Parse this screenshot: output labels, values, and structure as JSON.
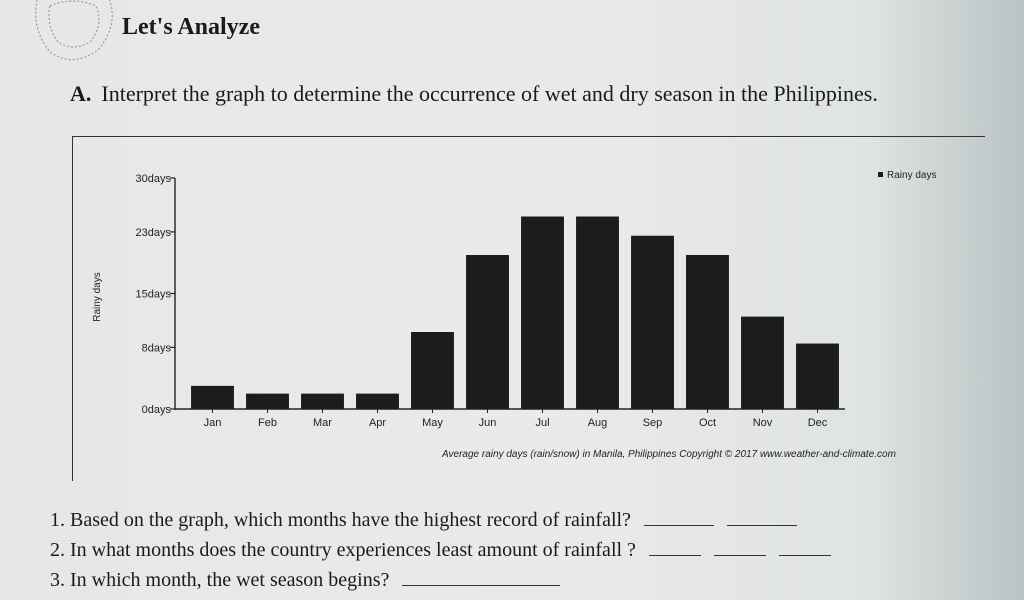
{
  "heading": "Let's Analyze",
  "section_a": {
    "label": "A.",
    "instruction": "Interpret the graph to determine the occurrence of wet and dry season in the Philippines."
  },
  "questions": [
    {
      "text": "1. Based on the graph, which months have the highest record of rainfall?"
    },
    {
      "text": "2. In what months does the country experiences least amount of rainfall ?"
    },
    {
      "text": "3. In which month, the wet season begins?"
    }
  ],
  "chart_data": {
    "type": "bar",
    "categories": [
      "Jan",
      "Feb",
      "Mar",
      "Apr",
      "May",
      "Jun",
      "Jul",
      "Aug",
      "Sep",
      "Oct",
      "Nov",
      "Dec"
    ],
    "series": [
      {
        "name": "Rainy days",
        "values": [
          3,
          2,
          2,
          2,
          10,
          20,
          25,
          25,
          22.5,
          20,
          12,
          8.5
        ],
        "color": "#1c1c1c"
      }
    ],
    "ylabel": "Rainy days",
    "ylim": [
      0,
      30
    ],
    "yticks": [
      0,
      8,
      15,
      23,
      30
    ],
    "ytick_labels": [
      "0days",
      "8days",
      "15days",
      "23days",
      "30days"
    ],
    "caption": "Average rainy days (rain/snow) in Manila, Philippines  Copyright © 2017 www.weather-and-climate.com",
    "legend_position": "top-right",
    "grid": false
  }
}
